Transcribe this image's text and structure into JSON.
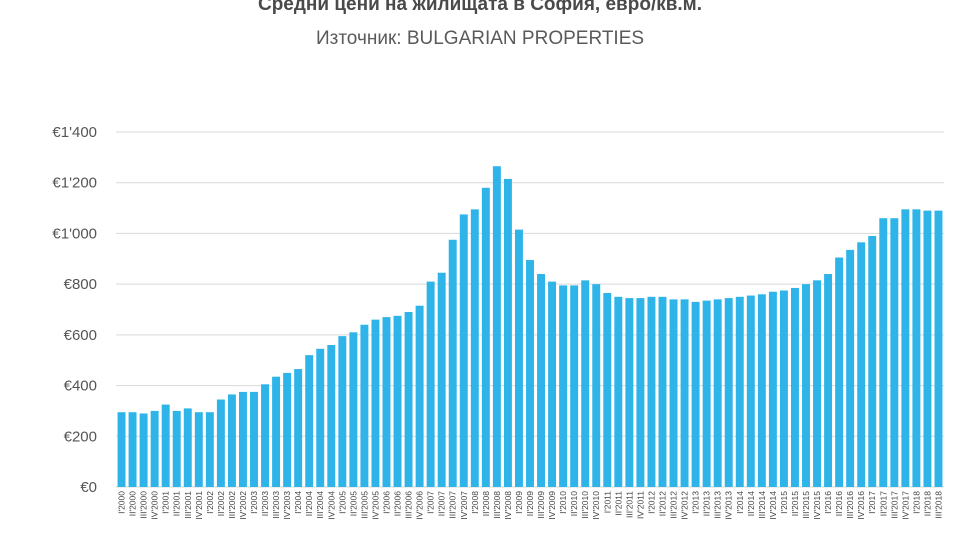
{
  "chart_data": {
    "type": "bar",
    "title": "Средни цени на жилищата в София, евро/кв.м.",
    "subtitle": "Източник: BULGARIAN PROPERTIES",
    "xlabel": "",
    "ylabel": "",
    "ylim": [
      0,
      1400
    ],
    "yticks": [
      0,
      200,
      400,
      600,
      800,
      1000,
      1200,
      1400
    ],
    "ytick_labels": [
      "€0",
      "€200",
      "€400",
      "€600",
      "€800",
      "€1'000",
      "€1'200",
      "€1'400"
    ],
    "grid": true,
    "legend": "none",
    "bar_color": "#2eb4e8",
    "categories": [
      "I'2000",
      "II'2000",
      "III'2000",
      "IV'2000",
      "I'2001",
      "II'2001",
      "III'2001",
      "IV'2001",
      "I'2002",
      "II'2002",
      "III'2002",
      "IV'2002",
      "I'2003",
      "II'2003",
      "III'2003",
      "IV'2003",
      "I'2004",
      "II'2004",
      "III'2004",
      "IV'2004",
      "I'2005",
      "II'2005",
      "III'2005",
      "IV'2005",
      "I'2006",
      "II'2006",
      "III'2006",
      "IV'2006",
      "I'2007",
      "II'2007",
      "III'2007",
      "IV'2007",
      "I'2008",
      "II'2008",
      "III'2008",
      "IV'2008",
      "I'2009",
      "II'2009",
      "III'2009",
      "IV'2009",
      "I'2010",
      "II'2010",
      "III'2010",
      "IV'2010",
      "I'2011",
      "II'2011",
      "III'2011",
      "IV'2011",
      "I'2012",
      "II'2012",
      "III'2012",
      "IV'2012",
      "I'2013",
      "II'2013",
      "III'2013",
      "IV'2013",
      "I'2014",
      "II'2014",
      "III'2014",
      "IV'2014",
      "I'2015",
      "II'2015",
      "III'2015",
      "IV'2015",
      "I'2016",
      "II'2016",
      "III'2016",
      "IV'2016",
      "I'2017",
      "II'2017",
      "III'2017",
      "IV'2017",
      "I'2018",
      "II'2018",
      "III'2018"
    ],
    "values": [
      295,
      295,
      290,
      300,
      325,
      300,
      310,
      295,
      295,
      345,
      365,
      375,
      375,
      405,
      435,
      450,
      465,
      520,
      545,
      560,
      595,
      610,
      640,
      660,
      670,
      675,
      690,
      715,
      810,
      845,
      975,
      1075,
      1095,
      1180,
      1265,
      1215,
      1015,
      895,
      840,
      810,
      795,
      795,
      815,
      800,
      765,
      750,
      745,
      745,
      750,
      750,
      740,
      740,
      730,
      735,
      740,
      745,
      750,
      755,
      760,
      770,
      775,
      785,
      800,
      815,
      840,
      905,
      935,
      965,
      990,
      1060,
      1060,
      1095,
      1095,
      1090,
      1090
    ]
  }
}
